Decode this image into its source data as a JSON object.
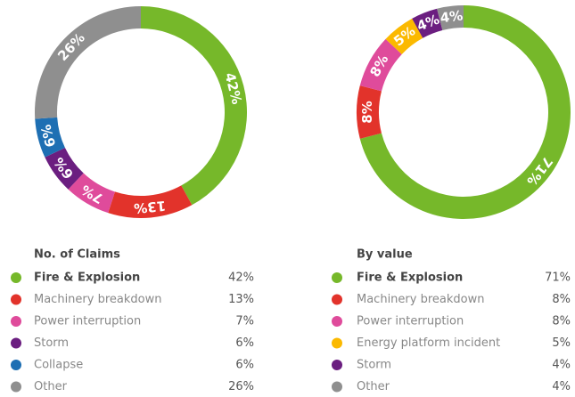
{
  "chart_data": [
    {
      "type": "pie",
      "title": "No. of Claims",
      "categories": [
        "Fire & Explosion",
        "Machinery breakdown",
        "Power interruption",
        "Storm",
        "Collapse",
        "Other"
      ],
      "values": [
        42,
        13,
        7,
        6,
        6,
        26
      ],
      "value_labels": [
        "42%",
        "13%",
        "7%",
        "6%",
        "6%",
        "26%"
      ],
      "colors": [
        "#76b82a",
        "#e2332b",
        "#df4b9b",
        "#6b1e80",
        "#1e6fb3",
        "#8f8f8f"
      ]
    },
    {
      "type": "pie",
      "title": "By value",
      "categories": [
        "Fire & Explosion",
        "Machinery breakdown",
        "Power interruption",
        "Energy platform incident",
        "Storm",
        "Other"
      ],
      "values": [
        71,
        8,
        8,
        5,
        4,
        4
      ],
      "value_labels": [
        "71%",
        "8%",
        "8%",
        "5%",
        "4%",
        "4%"
      ],
      "colors": [
        "#76b82a",
        "#e2332b",
        "#df4b9b",
        "#fbb900",
        "#6b1e80",
        "#8f8f8f"
      ]
    }
  ]
}
